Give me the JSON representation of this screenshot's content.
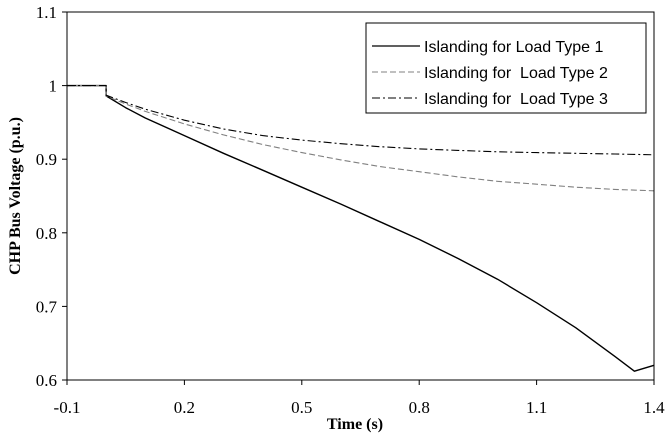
{
  "chart_data": {
    "type": "line",
    "title": "",
    "xlabel": "Time (s)",
    "ylabel": "CHP Bus Voltage (p.u.)",
    "xlim": [
      -0.1,
      1.4
    ],
    "ylim": [
      0.6,
      1.1
    ],
    "xticks": [
      "-0.1",
      "0.2",
      "0.5",
      "0.8",
      "1.1",
      "1.4"
    ],
    "yticks": [
      "0.6",
      "0.7",
      "0.8",
      "0.9",
      "1",
      "1.1"
    ],
    "grid": false,
    "legend_position": "top-right",
    "series": [
      {
        "name": "Islanding for Load Type 1",
        "style": "solid",
        "color": "#000000",
        "x": [
          -0.1,
          0.0,
          0.0,
          0.05,
          0.1,
          0.2,
          0.3,
          0.4,
          0.5,
          0.6,
          0.7,
          0.8,
          0.9,
          1.0,
          1.1,
          1.2,
          1.3,
          1.35,
          1.4
        ],
        "y": [
          1.0,
          1.0,
          0.986,
          0.97,
          0.956,
          0.932,
          0.908,
          0.885,
          0.862,
          0.839,
          0.815,
          0.791,
          0.765,
          0.737,
          0.705,
          0.671,
          0.632,
          0.612,
          0.62
        ]
      },
      {
        "name": "Islanding for  Load Type 2",
        "style": "dashed",
        "color": "#808080",
        "x": [
          -0.1,
          0.0,
          0.0,
          0.05,
          0.1,
          0.2,
          0.3,
          0.4,
          0.5,
          0.6,
          0.7,
          0.8,
          0.9,
          1.0,
          1.1,
          1.2,
          1.3,
          1.4
        ],
        "y": [
          1.0,
          1.0,
          0.986,
          0.975,
          0.965,
          0.948,
          0.933,
          0.92,
          0.909,
          0.899,
          0.89,
          0.883,
          0.876,
          0.87,
          0.866,
          0.862,
          0.859,
          0.857
        ]
      },
      {
        "name": "Islanding for  Load Type 3",
        "style": "dashdot",
        "color": "#000000",
        "x": [
          -0.1,
          0.0,
          0.0,
          0.05,
          0.1,
          0.2,
          0.3,
          0.4,
          0.5,
          0.6,
          0.7,
          0.8,
          0.9,
          1.0,
          1.1,
          1.2,
          1.3,
          1.4
        ],
        "y": [
          1.0,
          1.0,
          0.987,
          0.977,
          0.968,
          0.953,
          0.941,
          0.932,
          0.926,
          0.921,
          0.917,
          0.914,
          0.912,
          0.91,
          0.909,
          0.908,
          0.907,
          0.906
        ]
      }
    ]
  }
}
